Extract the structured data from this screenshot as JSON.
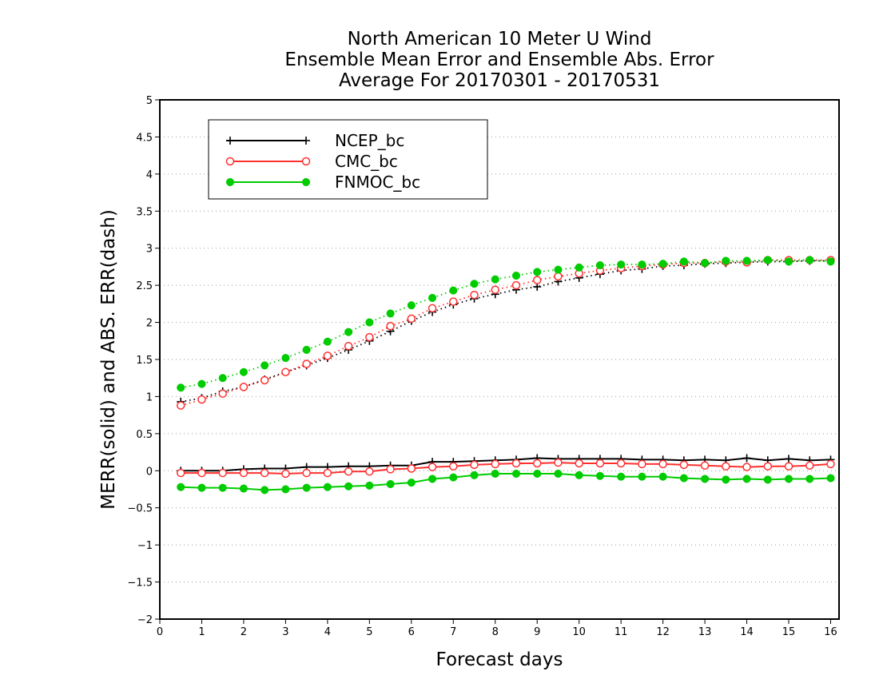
{
  "chart_data": {
    "type": "line",
    "title": [
      "North American 10 Meter U Wind",
      "Ensemble Mean Error and Ensemble Abs. Error",
      "Average For 20170301 - 20170531"
    ],
    "xlabel": "Forecast days",
    "ylabel": "MERR(solid) and ABS. ERR(dash)",
    "xlim": [
      0,
      16.2
    ],
    "ylim": [
      -2,
      5
    ],
    "xticks": [
      "0",
      "1",
      "2",
      "3",
      "4",
      "5",
      "6",
      "7",
      "8",
      "9",
      "10",
      "11",
      "12",
      "13",
      "14",
      "15",
      "16"
    ],
    "yticks": [
      "-2",
      "-1.5",
      "-1",
      "-0.5",
      "0",
      "0.5",
      "1",
      "1.5",
      "2",
      "2.5",
      "3",
      "3.5",
      "4",
      "4.5",
      "5"
    ],
    "grid": "horizontal dotted",
    "legend_position": "top-left",
    "x": [
      0.5,
      1,
      1.5,
      2,
      2.5,
      3,
      3.5,
      4,
      4.5,
      5,
      5.5,
      6,
      6.5,
      7,
      7.5,
      8,
      8.5,
      9,
      9.5,
      10,
      10.5,
      11,
      11.5,
      12,
      12.5,
      13,
      13.5,
      14,
      14.5,
      15,
      15.5,
      16
    ],
    "series": [
      {
        "name": "NCEP_bc",
        "color": "#000000",
        "marker": "plus",
        "merr": [
          0.0,
          0.0,
          0.0,
          0.02,
          0.03,
          0.03,
          0.05,
          0.05,
          0.06,
          0.06,
          0.07,
          0.07,
          0.12,
          0.12,
          0.13,
          0.14,
          0.15,
          0.17,
          0.16,
          0.16,
          0.16,
          0.16,
          0.15,
          0.15,
          0.14,
          0.15,
          0.14,
          0.17,
          0.14,
          0.16,
          0.14,
          0.15
        ],
        "abs_err": [
          0.93,
          0.98,
          1.07,
          1.13,
          1.23,
          1.33,
          1.42,
          1.52,
          1.63,
          1.75,
          1.88,
          2.02,
          2.14,
          2.24,
          2.32,
          2.38,
          2.44,
          2.48,
          2.55,
          2.6,
          2.65,
          2.7,
          2.72,
          2.76,
          2.77,
          2.79,
          2.8,
          2.81,
          2.82,
          2.82,
          2.83,
          2.83
        ]
      },
      {
        "name": "CMC_bc",
        "color": "#ff3030",
        "marker": "open-circle",
        "merr": [
          -0.03,
          -0.03,
          -0.03,
          -0.03,
          -0.03,
          -0.04,
          -0.03,
          -0.03,
          -0.01,
          -0.01,
          0.02,
          0.03,
          0.05,
          0.06,
          0.08,
          0.09,
          0.1,
          0.1,
          0.11,
          0.1,
          0.1,
          0.1,
          0.09,
          0.09,
          0.08,
          0.07,
          0.06,
          0.05,
          0.06,
          0.06,
          0.07,
          0.09
        ],
        "abs_err": [
          0.88,
          0.96,
          1.04,
          1.13,
          1.22,
          1.33,
          1.44,
          1.55,
          1.68,
          1.8,
          1.95,
          2.05,
          2.19,
          2.28,
          2.37,
          2.44,
          2.5,
          2.57,
          2.62,
          2.66,
          2.7,
          2.73,
          2.76,
          2.78,
          2.8,
          2.8,
          2.82,
          2.81,
          2.84,
          2.84,
          2.84,
          2.84
        ]
      },
      {
        "name": "FNMOC_bc",
        "color": "#00cc00",
        "marker": "filled-circle",
        "merr": [
          -0.22,
          -0.23,
          -0.23,
          -0.24,
          -0.26,
          -0.25,
          -0.23,
          -0.22,
          -0.21,
          -0.2,
          -0.18,
          -0.16,
          -0.11,
          -0.09,
          -0.06,
          -0.04,
          -0.04,
          -0.04,
          -0.04,
          -0.06,
          -0.07,
          -0.08,
          -0.08,
          -0.08,
          -0.1,
          -0.11,
          -0.12,
          -0.11,
          -0.12,
          -0.11,
          -0.11,
          -0.1
        ],
        "abs_err": [
          1.12,
          1.17,
          1.25,
          1.33,
          1.42,
          1.52,
          1.63,
          1.74,
          1.87,
          2.0,
          2.12,
          2.23,
          2.33,
          2.43,
          2.52,
          2.58,
          2.63,
          2.68,
          2.71,
          2.74,
          2.77,
          2.78,
          2.78,
          2.79,
          2.82,
          2.8,
          2.83,
          2.83,
          2.84,
          2.82,
          2.84,
          2.82
        ]
      }
    ]
  }
}
